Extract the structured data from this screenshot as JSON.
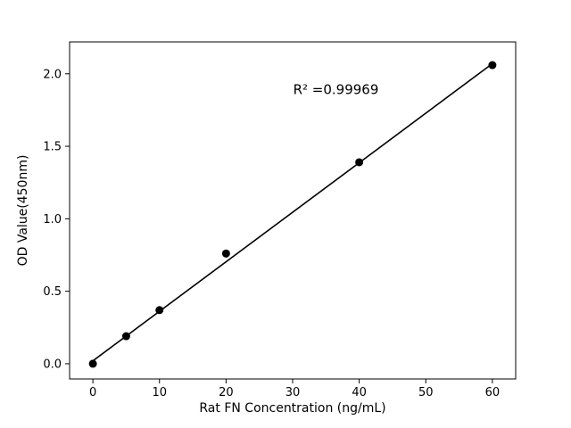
{
  "figure": {
    "background": "#ffffff",
    "axis_color": "#000000",
    "marker_color": "#000000",
    "line_color": "#000000"
  },
  "chart_data": {
    "type": "scatter",
    "title": "",
    "xlabel": "Rat FN Concentration (ng/mL)",
    "ylabel": "OD Value(450nm)",
    "annotation": "R² =0.99969",
    "annotation_xy": [
      36.5,
      1.86
    ],
    "x": [
      0,
      5,
      10,
      20,
      40,
      60
    ],
    "y": [
      0.0,
      0.19,
      0.37,
      0.76,
      1.39,
      2.06
    ],
    "trendline": {
      "x1": 0,
      "y1": 0.02,
      "x2": 60,
      "y2": 2.07
    },
    "x_tick_values": [
      0,
      10,
      20,
      30,
      40,
      50,
      60
    ],
    "x_tick_labels": [
      "0",
      "10",
      "20",
      "30",
      "40",
      "50",
      "60"
    ],
    "y_tick_values": [
      0.0,
      0.5,
      1.0,
      1.5,
      2.0
    ],
    "y_tick_labels": [
      "0.0",
      "0.5",
      "1.0",
      "1.5",
      "2.0"
    ],
    "xlim": [
      -3.5,
      63.5
    ],
    "ylim": [
      -0.105,
      2.22
    ],
    "grid": false,
    "legend": "none"
  }
}
